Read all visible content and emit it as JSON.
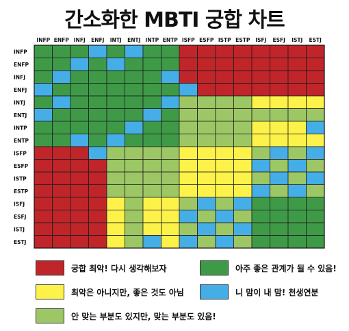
{
  "title": "간소화한 MBTI 궁합 차트",
  "colors": {
    "R": "#c0252a",
    "G": "#3f9a48",
    "B": "#45aee6",
    "Y": "#fdf24a",
    "L": "#9dc765"
  },
  "legend": [
    {
      "key": "R",
      "label": "궁합 최악! 다시 생각해보자"
    },
    {
      "key": "G",
      "label": "아주 좋은 관계가 될 수 있음!"
    },
    {
      "key": "Y",
      "label": "최악은 아니지만, 좋은 것도 아님"
    },
    {
      "key": "B",
      "label": "니 맘이 내 맘! 천생연분"
    },
    {
      "key": "L",
      "label": "안 맞는 부분도 있지만, 맞는 부분도 있음!"
    }
  ],
  "chart_data": {
    "type": "heatmap",
    "title": "간소화한 MBTI 궁합 차트",
    "columns": [
      "INFP",
      "ENFP",
      "INFJ",
      "ENFJ",
      "INTJ",
      "ENTJ",
      "INTP",
      "ENTP",
      "ISFP",
      "ESFP",
      "ISTP",
      "ESTP",
      "ISFJ",
      "ESFJ",
      "ISTJ",
      "ESTJ"
    ],
    "rows": [
      "INFP",
      "ENFP",
      "INFJ",
      "ENFJ",
      "INTJ",
      "ENTJ",
      "INTP",
      "ENTP",
      "ISFP",
      "ESFP",
      "ISTP",
      "ESTP",
      "ISFJ",
      "ESFJ",
      "ISTJ",
      "ESTJ"
    ],
    "matrix": [
      [
        "G",
        "G",
        "G",
        "B",
        "G",
        "B",
        "G",
        "G",
        "R",
        "R",
        "R",
        "R",
        "R",
        "R",
        "R",
        "R"
      ],
      [
        "G",
        "G",
        "B",
        "G",
        "B",
        "G",
        "G",
        "G",
        "R",
        "R",
        "R",
        "R",
        "R",
        "R",
        "R",
        "R"
      ],
      [
        "G",
        "B",
        "G",
        "G",
        "G",
        "G",
        "G",
        "B",
        "R",
        "R",
        "R",
        "R",
        "R",
        "R",
        "R",
        "R"
      ],
      [
        "B",
        "G",
        "G",
        "G",
        "G",
        "G",
        "G",
        "G",
        "B",
        "R",
        "R",
        "R",
        "R",
        "R",
        "R",
        "R"
      ],
      [
        "G",
        "B",
        "G",
        "G",
        "G",
        "G",
        "G",
        "B",
        "L",
        "L",
        "L",
        "L",
        "Y",
        "Y",
        "Y",
        "Y"
      ],
      [
        "B",
        "G",
        "G",
        "G",
        "G",
        "G",
        "B",
        "G",
        "L",
        "L",
        "L",
        "L",
        "L",
        "L",
        "L",
        "L"
      ],
      [
        "G",
        "G",
        "G",
        "G",
        "G",
        "B",
        "G",
        "G",
        "L",
        "L",
        "L",
        "L",
        "Y",
        "Y",
        "Y",
        "B"
      ],
      [
        "G",
        "G",
        "B",
        "G",
        "B",
        "G",
        "G",
        "G",
        "L",
        "L",
        "L",
        "L",
        "Y",
        "Y",
        "Y",
        "Y"
      ],
      [
        "R",
        "R",
        "R",
        "B",
        "L",
        "L",
        "L",
        "L",
        "Y",
        "Y",
        "Y",
        "Y",
        "L",
        "B",
        "L",
        "B"
      ],
      [
        "R",
        "R",
        "R",
        "R",
        "L",
        "L",
        "L",
        "L",
        "Y",
        "Y",
        "Y",
        "Y",
        "B",
        "L",
        "B",
        "L"
      ],
      [
        "R",
        "R",
        "R",
        "R",
        "L",
        "L",
        "L",
        "L",
        "Y",
        "Y",
        "Y",
        "Y",
        "L",
        "B",
        "L",
        "B"
      ],
      [
        "R",
        "R",
        "R",
        "R",
        "L",
        "L",
        "L",
        "L",
        "Y",
        "Y",
        "Y",
        "Y",
        "B",
        "L",
        "B",
        "L"
      ],
      [
        "R",
        "R",
        "R",
        "R",
        "Y",
        "L",
        "Y",
        "Y",
        "L",
        "B",
        "L",
        "B",
        "G",
        "G",
        "G",
        "G"
      ],
      [
        "R",
        "R",
        "R",
        "R",
        "Y",
        "L",
        "Y",
        "Y",
        "B",
        "L",
        "B",
        "L",
        "G",
        "G",
        "G",
        "G"
      ],
      [
        "R",
        "R",
        "R",
        "R",
        "Y",
        "L",
        "Y",
        "Y",
        "L",
        "B",
        "L",
        "B",
        "G",
        "G",
        "G",
        "G"
      ],
      [
        "R",
        "R",
        "R",
        "R",
        "Y",
        "L",
        "B",
        "Y",
        "B",
        "L",
        "B",
        "L",
        "G",
        "G",
        "G",
        "G"
      ]
    ]
  }
}
